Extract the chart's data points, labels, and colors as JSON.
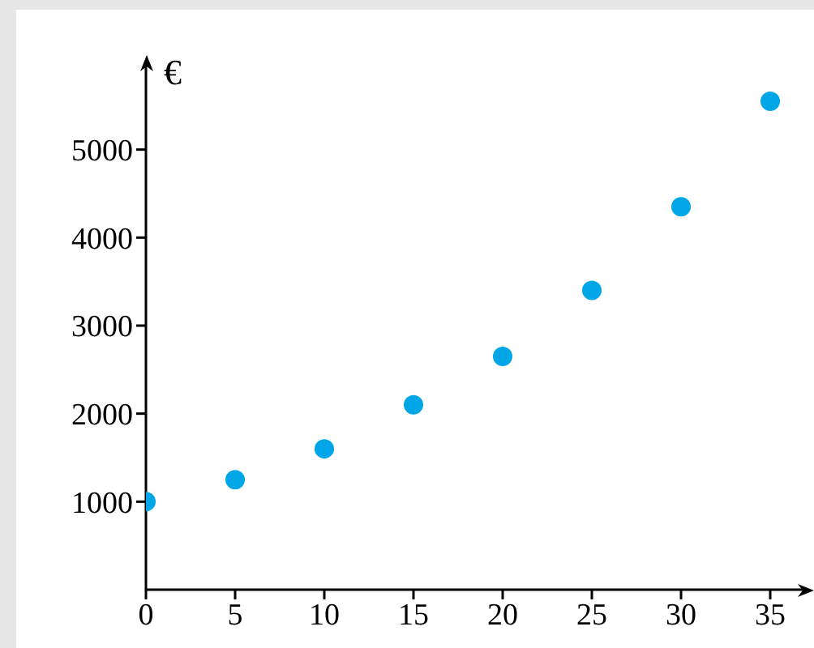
{
  "chart_data": {
    "type": "scatter",
    "ylabel": "€",
    "x": [
      0,
      5,
      10,
      15,
      20,
      25,
      30,
      35
    ],
    "series": [
      {
        "color": "#00a6e6",
        "values": [
          1000,
          1250,
          1600,
          2100,
          2650,
          3400,
          4350,
          5550
        ]
      }
    ],
    "xlim": [
      0,
      37
    ],
    "xticks": [
      0,
      5,
      10,
      15,
      20,
      25,
      30,
      35
    ],
    "ylim": [
      0,
      6000
    ],
    "yticks": [
      1000,
      2000,
      3000,
      4000,
      5000
    ],
    "grid": false,
    "legend": false,
    "marker": "circle"
  }
}
